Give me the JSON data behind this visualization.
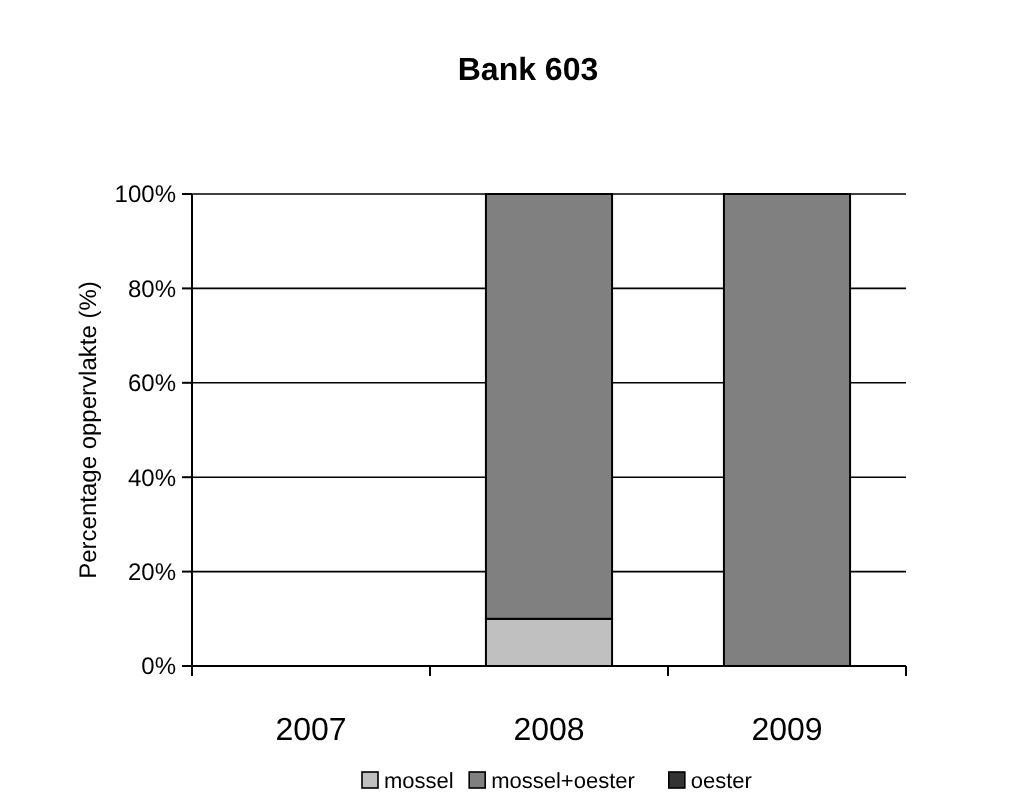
{
  "chart_data": {
    "type": "bar",
    "title": "Bank 603",
    "ylabel": "Percentage oppervlakte (%)",
    "categories": [
      "2007",
      "2008",
      "2009"
    ],
    "stacked": true,
    "series": [
      {
        "name": "mossel",
        "color": "#c0c0c0",
        "values": [
          0,
          10,
          0
        ]
      },
      {
        "name": "mossel+oester",
        "color": "#808080",
        "values": [
          0,
          90,
          100
        ]
      },
      {
        "name": "oester",
        "color": "#333333",
        "values": [
          0,
          0,
          0
        ]
      }
    ],
    "ylim": [
      0,
      100
    ],
    "yticks": [
      {
        "value": 0,
        "label": "0%"
      },
      {
        "value": 20,
        "label": "20%"
      },
      {
        "value": 40,
        "label": "40%"
      },
      {
        "value": 60,
        "label": "60%"
      },
      {
        "value": 80,
        "label": "80%"
      },
      {
        "value": 100,
        "label": "100%"
      }
    ],
    "grid": "y",
    "legend": "bottom"
  }
}
